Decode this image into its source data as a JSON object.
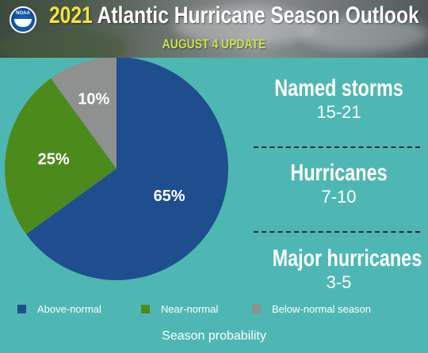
{
  "header": {
    "title_year": "2021",
    "title_rest": "Atlantic Hurricane Season Outlook",
    "subtitle": "AUGUST 4 UPDATE",
    "logo_text": "NOAA"
  },
  "chart_data": {
    "type": "pie",
    "categories": [
      "Above-normal",
      "Near-normal",
      "Below-normal season"
    ],
    "values": [
      65,
      25,
      10
    ],
    "labels": [
      "65%",
      "25%",
      "10%"
    ],
    "colors": [
      "#1f4e8f",
      "#4d8a1c",
      "#8e9190"
    ],
    "legend_position": "bottom",
    "xlabel": "Season probability"
  },
  "stats": [
    {
      "label": "Named storms",
      "value": "15-21"
    },
    {
      "label": "Hurricanes",
      "value": "7-10"
    },
    {
      "label": "Major hurricanes",
      "value": "3-5"
    }
  ],
  "colors": {
    "background": "#4fb7b3",
    "title_year": "#f6e23a",
    "subtitle": "#c8e24a"
  }
}
